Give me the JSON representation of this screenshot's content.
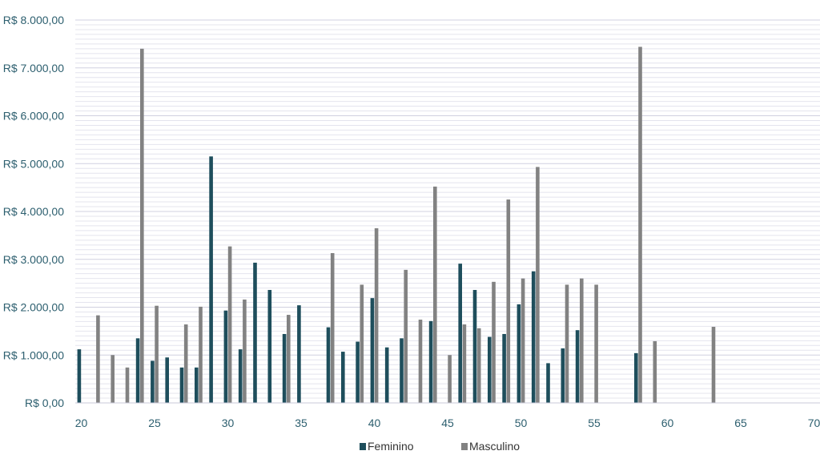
{
  "chart_data": {
    "type": "bar",
    "xlim": [
      20,
      70
    ],
    "ylim": [
      0,
      8000
    ],
    "x_ticks": [
      "20",
      "25",
      "30",
      "35",
      "40",
      "45",
      "50",
      "55",
      "60",
      "65",
      "70"
    ],
    "y_ticks": [
      "R$ 0,00",
      "R$ 1.000,00",
      "R$ 2.000,00",
      "R$ 3.000,00",
      "R$ 4.000,00",
      "R$ 5.000,00",
      "R$ 6.000,00",
      "R$ 7.000,00",
      "R$ 8.000,00"
    ],
    "y_tick_values": [
      0,
      1000,
      2000,
      3000,
      4000,
      5000,
      6000,
      7000,
      8000
    ],
    "minor_gridlines": true,
    "legend_position": "bottom",
    "series": [
      {
        "name": "Feminino",
        "color": "#1e4e5c",
        "points": [
          [
            20,
            1120
          ],
          [
            24,
            1350
          ],
          [
            25,
            880
          ],
          [
            26,
            950
          ],
          [
            27,
            740
          ],
          [
            28,
            740
          ],
          [
            29,
            5150
          ],
          [
            30,
            1930
          ],
          [
            31,
            1120
          ],
          [
            32,
            2930
          ],
          [
            33,
            2360
          ],
          [
            34,
            1440
          ],
          [
            35,
            2040
          ],
          [
            37,
            1580
          ],
          [
            38,
            1070
          ],
          [
            39,
            1280
          ],
          [
            40,
            2190
          ],
          [
            41,
            1160
          ],
          [
            42,
            1350
          ],
          [
            44,
            1710
          ],
          [
            46,
            2910
          ],
          [
            47,
            2360
          ],
          [
            48,
            1380
          ],
          [
            49,
            1440
          ],
          [
            50,
            2060
          ],
          [
            51,
            2750
          ],
          [
            52,
            830
          ],
          [
            53,
            1140
          ],
          [
            54,
            1520
          ],
          [
            58,
            1040
          ]
        ]
      },
      {
        "name": "Masculino",
        "color": "#828282",
        "points": [
          [
            21,
            1830
          ],
          [
            22,
            1000
          ],
          [
            23,
            740
          ],
          [
            24,
            7400
          ],
          [
            25,
            2030
          ],
          [
            27,
            1640
          ],
          [
            28,
            2010
          ],
          [
            30,
            3270
          ],
          [
            31,
            2160
          ],
          [
            34,
            1840
          ],
          [
            37,
            3130
          ],
          [
            39,
            2470
          ],
          [
            40,
            3650
          ],
          [
            42,
            2780
          ],
          [
            43,
            1740
          ],
          [
            44,
            4520
          ],
          [
            45,
            1000
          ],
          [
            46,
            1640
          ],
          [
            47,
            1560
          ],
          [
            48,
            2530
          ],
          [
            49,
            4250
          ],
          [
            50,
            2600
          ],
          [
            51,
            4930
          ],
          [
            53,
            2470
          ],
          [
            54,
            2600
          ],
          [
            55,
            2470
          ],
          [
            58,
            7440
          ],
          [
            59,
            1290
          ],
          [
            63,
            1590
          ]
        ]
      }
    ]
  }
}
